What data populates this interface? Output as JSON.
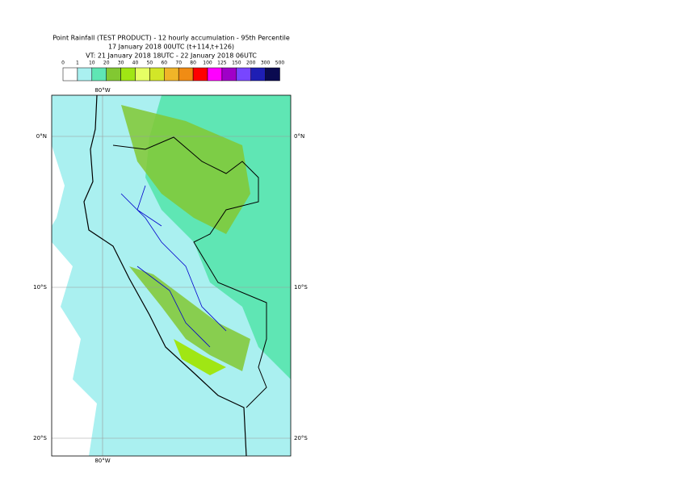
{
  "header": {
    "title": "Point Rainfall (TEST PRODUCT) - 12 hourly accumulation - 95th Percentile",
    "base_time": "17 January 2018 00UTC (t+114,t+126)",
    "valid_time": "VT: 21 January 2018 18UTC - 22 January 2018 06UTC"
  },
  "legend": {
    "labels": [
      "0",
      "1",
      "10",
      "20",
      "30",
      "40",
      "50",
      "60",
      "70",
      "80",
      "100",
      "125",
      "150",
      "200",
      "300",
      "500"
    ],
    "colors": [
      "#ffffff",
      "#aaf0f0",
      "#5fe6b4",
      "#82c832",
      "#a0e614",
      "#e6ff64",
      "#d2e628",
      "#f0b428",
      "#f08c14",
      "#ff0000",
      "#ff00ff",
      "#a000c8",
      "#7846ff",
      "#1e1eb4",
      "#0a0a50"
    ]
  },
  "map": {
    "lat_labels": [
      "0°N",
      "10°S",
      "20°S"
    ],
    "lon_label": "80°W"
  }
}
